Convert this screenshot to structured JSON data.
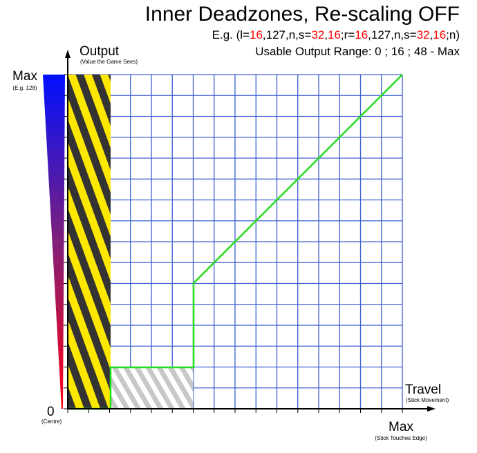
{
  "header": {
    "title": "Inner Deadzones, Re-scaling OFF",
    "example_parts": [
      "E.g. (l=",
      "16",
      ",127,n,s=",
      "32",
      ",",
      "16",
      ";r=",
      "16",
      ",127,n,s=",
      "32",
      ",",
      "16",
      ";n)"
    ],
    "usable_range": "Usable Output Range: 0 ; 16 ; 48 - Max"
  },
  "y_axis": {
    "label": "Output",
    "note": "(Value the Game Sees)",
    "max": "Max",
    "max_note": "(E.g. 128)",
    "zero": "0",
    "zero_note": "(Centre)"
  },
  "x_axis": {
    "label": "Travel",
    "note": "(Stick Movement)",
    "max": "Max",
    "max_note": "(Stick Touches Edge)"
  }
}
